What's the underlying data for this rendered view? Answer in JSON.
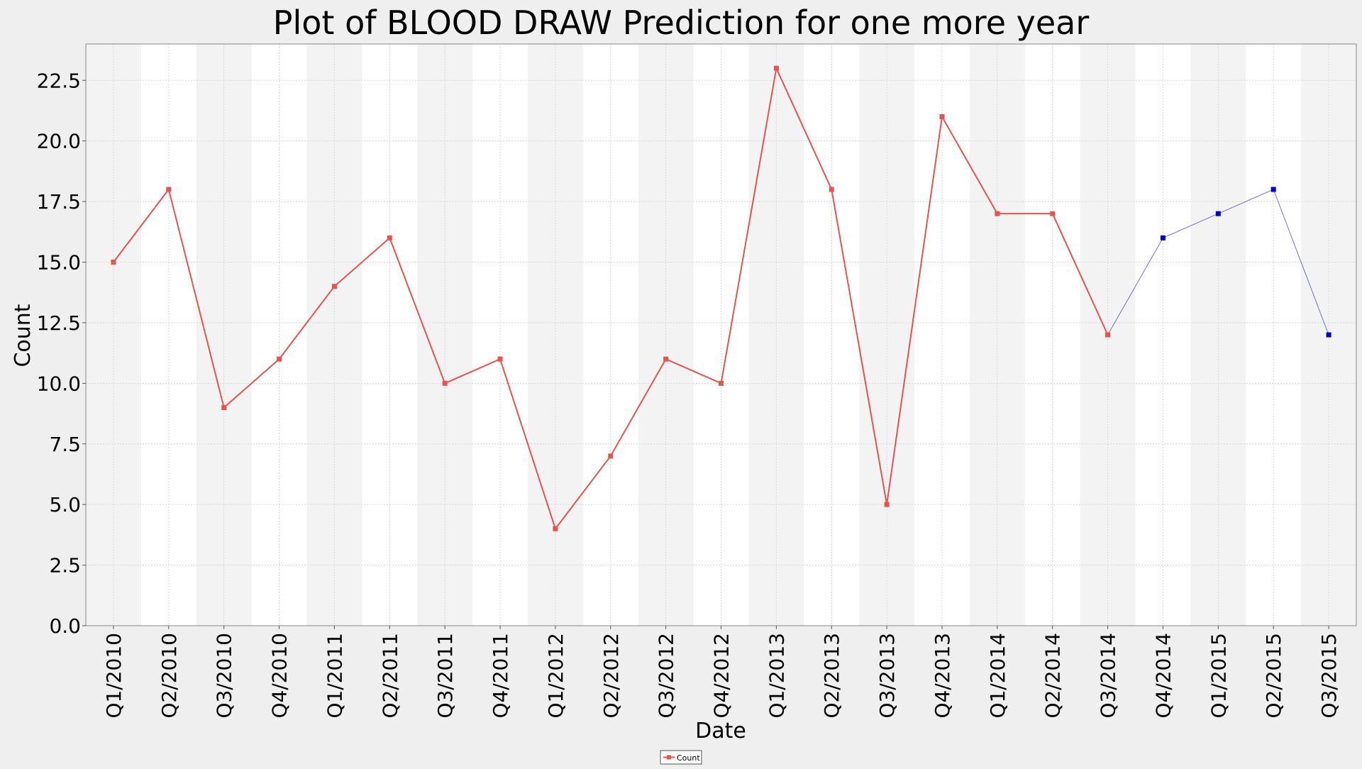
{
  "chart_data": {
    "type": "line",
    "title": "Plot of BLOOD DRAW Prediction for one more year",
    "xlabel": "Date",
    "ylabel": "Count",
    "ylim": [
      0,
      24
    ],
    "yticks": [
      "0.0",
      "2.5",
      "5.0",
      "7.5",
      "10.0",
      "12.5",
      "15.0",
      "17.5",
      "20.0",
      "22.5"
    ],
    "ytick_values": [
      0,
      2.5,
      5,
      7.5,
      10,
      12.5,
      15,
      17.5,
      20,
      22.5
    ],
    "grid": true,
    "legend_position": "bottom-center",
    "categories": [
      "Q1/2010",
      "Q2/2010",
      "Q3/2010",
      "Q4/2010",
      "Q1/2011",
      "Q2/2011",
      "Q3/2011",
      "Q4/2011",
      "Q1/2012",
      "Q2/2012",
      "Q3/2012",
      "Q4/2012",
      "Q1/2013",
      "Q2/2013",
      "Q3/2013",
      "Q4/2013",
      "Q1/2014",
      "Q2/2014",
      "Q3/2014",
      "Q4/2014",
      "Q1/2015",
      "Q2/2015",
      "Q3/2015"
    ],
    "series": [
      {
        "name": "Count",
        "color": "#e8534f",
        "values": [
          15,
          18,
          9,
          11,
          14,
          16,
          10,
          11,
          4,
          7,
          11,
          10,
          23,
          18,
          5,
          21,
          17,
          17,
          12,
          null,
          null,
          null,
          null
        ]
      },
      {
        "color": "#0000cc",
        "values": [
          null,
          null,
          null,
          null,
          null,
          null,
          null,
          null,
          null,
          null,
          null,
          null,
          null,
          null,
          null,
          null,
          null,
          null,
          12,
          16,
          17,
          18,
          12
        ]
      }
    ]
  }
}
